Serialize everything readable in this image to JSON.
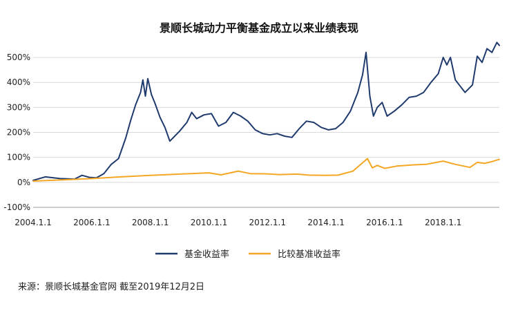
{
  "chart_data": {
    "type": "line",
    "title": "景顺长城动力平衡基金成立以来业绩表现",
    "xlabel": "",
    "ylabel": "",
    "x_tick_labels": [
      "2004.1.1",
      "2006.1.1",
      "2008.1.1",
      "2010.1.1",
      "2012.1.1",
      "2014.1.1",
      "2016.1.1",
      "2018.1.1"
    ],
    "y_tick_labels": [
      "500%",
      "400%",
      "300%",
      "200%",
      "100%",
      "0%",
      "-100%"
    ],
    "ylim": [
      -100,
      550
    ],
    "xlim": [
      "2004-01-01",
      "2019-12-02"
    ],
    "grid": "horizontal",
    "legend_position": "bottom",
    "colors": {
      "fund": "#1f3a6d",
      "benchmark": "#f5a623"
    },
    "series": [
      {
        "name": "基金收益率",
        "color": "#1f3a6d",
        "points": [
          [
            "2004-01-01",
            8
          ],
          [
            "2004-06-01",
            22
          ],
          [
            "2004-12-01",
            15
          ],
          [
            "2005-06-01",
            13
          ],
          [
            "2005-09-01",
            28
          ],
          [
            "2005-12-01",
            20
          ],
          [
            "2006-03-01",
            18
          ],
          [
            "2006-06-01",
            35
          ],
          [
            "2006-09-01",
            72
          ],
          [
            "2006-12-01",
            95
          ],
          [
            "2007-03-01",
            178
          ],
          [
            "2007-05-01",
            248
          ],
          [
            "2007-07-01",
            310
          ],
          [
            "2007-09-01",
            360
          ],
          [
            "2007-10-01",
            410
          ],
          [
            "2007-11-01",
            345
          ],
          [
            "2007-12-01",
            415
          ],
          [
            "2008-01-15",
            352
          ],
          [
            "2008-03-01",
            315
          ],
          [
            "2008-05-01",
            260
          ],
          [
            "2008-07-01",
            220
          ],
          [
            "2008-09-01",
            165
          ],
          [
            "2008-11-01",
            185
          ],
          [
            "2009-01-01",
            205
          ],
          [
            "2009-04-01",
            240
          ],
          [
            "2009-06-01",
            280
          ],
          [
            "2009-08-01",
            255
          ],
          [
            "2009-11-01",
            270
          ],
          [
            "2010-02-01",
            275
          ],
          [
            "2010-05-01",
            225
          ],
          [
            "2010-08-01",
            240
          ],
          [
            "2010-11-01",
            280
          ],
          [
            "2011-02-01",
            265
          ],
          [
            "2011-05-01",
            245
          ],
          [
            "2011-08-01",
            210
          ],
          [
            "2011-11-01",
            195
          ],
          [
            "2012-02-01",
            190
          ],
          [
            "2012-05-01",
            195
          ],
          [
            "2012-08-01",
            185
          ],
          [
            "2012-11-01",
            180
          ],
          [
            "2013-02-01",
            215
          ],
          [
            "2013-05-01",
            245
          ],
          [
            "2013-08-01",
            240
          ],
          [
            "2013-11-01",
            220
          ],
          [
            "2014-02-01",
            210
          ],
          [
            "2014-05-01",
            215
          ],
          [
            "2014-08-01",
            240
          ],
          [
            "2014-11-01",
            285
          ],
          [
            "2015-02-01",
            360
          ],
          [
            "2015-04-01",
            430
          ],
          [
            "2015-05-15",
            520
          ],
          [
            "2015-07-01",
            345
          ],
          [
            "2015-08-15",
            265
          ],
          [
            "2015-10-01",
            300
          ],
          [
            "2015-12-01",
            320
          ],
          [
            "2016-02-01",
            265
          ],
          [
            "2016-05-01",
            285
          ],
          [
            "2016-08-01",
            310
          ],
          [
            "2016-11-01",
            340
          ],
          [
            "2017-02-01",
            345
          ],
          [
            "2017-05-01",
            360
          ],
          [
            "2017-08-01",
            400
          ],
          [
            "2017-11-01",
            435
          ],
          [
            "2018-01-01",
            500
          ],
          [
            "2018-02-15",
            470
          ],
          [
            "2018-04-01",
            500
          ],
          [
            "2018-06-01",
            410
          ],
          [
            "2018-08-01",
            385
          ],
          [
            "2018-10-01",
            360
          ],
          [
            "2019-01-01",
            390
          ],
          [
            "2019-03-01",
            505
          ],
          [
            "2019-05-01",
            480
          ],
          [
            "2019-07-01",
            535
          ],
          [
            "2019-09-01",
            520
          ],
          [
            "2019-11-01",
            560
          ],
          [
            "2019-12-02",
            548
          ]
        ]
      },
      {
        "name": "比较基准收益率",
        "color": "#f5a623",
        "points": [
          [
            "2004-01-01",
            5
          ],
          [
            "2005-01-01",
            10
          ],
          [
            "2006-01-01",
            15
          ],
          [
            "2007-01-01",
            22
          ],
          [
            "2008-01-01",
            28
          ],
          [
            "2009-01-01",
            33
          ],
          [
            "2010-01-01",
            38
          ],
          [
            "2010-06-01",
            30
          ],
          [
            "2011-01-01",
            45
          ],
          [
            "2011-06-01",
            35
          ],
          [
            "2012-01-01",
            34
          ],
          [
            "2012-06-01",
            31
          ],
          [
            "2013-01-01",
            33
          ],
          [
            "2013-06-01",
            29
          ],
          [
            "2014-01-01",
            28
          ],
          [
            "2014-06-01",
            29
          ],
          [
            "2014-12-01",
            45
          ],
          [
            "2015-04-01",
            78
          ],
          [
            "2015-06-01",
            95
          ],
          [
            "2015-08-01",
            58
          ],
          [
            "2015-10-01",
            68
          ],
          [
            "2016-01-01",
            56
          ],
          [
            "2016-06-01",
            65
          ],
          [
            "2017-01-01",
            70
          ],
          [
            "2017-06-01",
            72
          ],
          [
            "2018-01-01",
            85
          ],
          [
            "2018-06-01",
            72
          ],
          [
            "2018-12-01",
            60
          ],
          [
            "2019-03-01",
            80
          ],
          [
            "2019-06-01",
            76
          ],
          [
            "2019-09-01",
            83
          ],
          [
            "2019-12-02",
            92
          ]
        ]
      }
    ]
  },
  "footer": {
    "source_note": "来源：景顺长城基金官网 截至2019年12月2日"
  }
}
